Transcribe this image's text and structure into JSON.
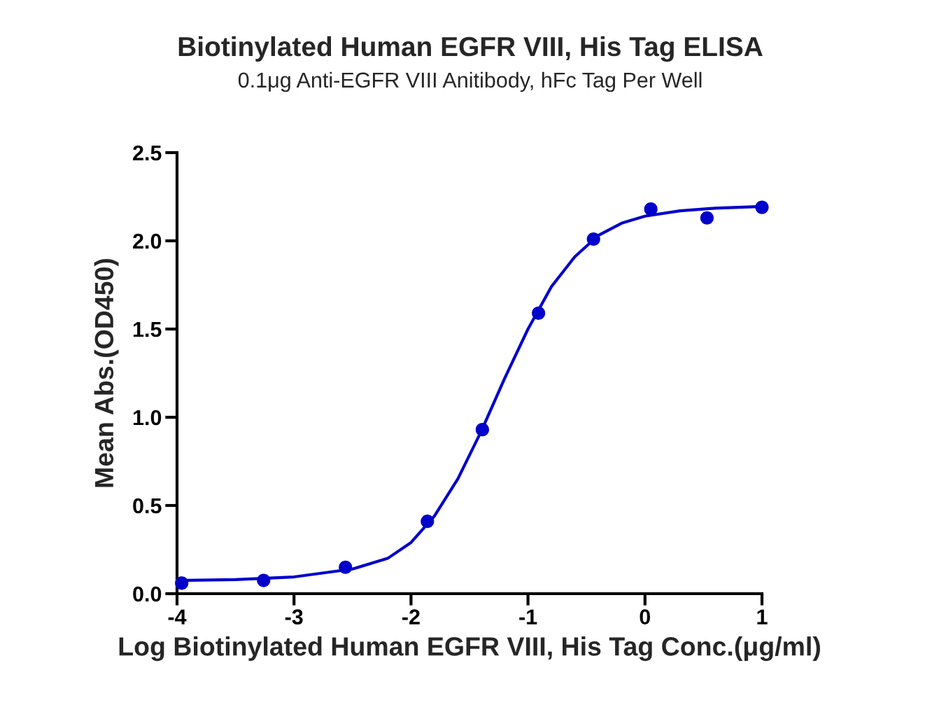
{
  "chart_data": {
    "type": "scatter",
    "title": "Biotinylated Human EGFR VIII, His Tag ELISA",
    "subtitle": "0.1μg Anti-EGFR VIII Anitibody, hFc Tag Per Well",
    "xlabel": "Log Biotinylated Human EGFR VIII, His Tag Conc.(μg/ml)",
    "ylabel": "Mean Abs.(OD450)",
    "series": [
      {
        "color": "#0000cc",
        "marker": "circle",
        "x": [
          -3.96,
          -3.26,
          -2.56,
          -1.86,
          -1.39,
          -0.91,
          -0.44,
          0.05,
          0.53,
          1.0
        ],
        "values": [
          0.06,
          0.075,
          0.15,
          0.41,
          0.93,
          1.59,
          2.01,
          2.18,
          2.13,
          2.19
        ]
      },
      {
        "type": "line",
        "color": "#0000cc",
        "marker": "none",
        "line_style": "solid",
        "x": [
          -4,
          -3.5,
          -3,
          -2.5,
          -2.2,
          -2,
          -1.8,
          -1.6,
          -1.4,
          -1.2,
          -1.0,
          -0.8,
          -0.6,
          -0.4,
          -0.2,
          0,
          0.3,
          0.6,
          1
        ],
        "values": [
          0.075,
          0.08,
          0.095,
          0.14,
          0.2,
          0.29,
          0.44,
          0.65,
          0.92,
          1.22,
          1.5,
          1.74,
          1.91,
          2.03,
          2.1,
          2.14,
          2.17,
          2.185,
          2.195
        ]
      }
    ],
    "xlim": [
      -4,
      1
    ],
    "xticks": [
      -4,
      -3,
      -2,
      -1,
      0,
      1
    ],
    "ylim": [
      0,
      2.5
    ],
    "yticks": [
      {
        "value": 0,
        "label": "0.0"
      },
      0.5,
      {
        "value": 1,
        "label": "1.0"
      },
      1.5,
      {
        "value": 2,
        "label": "2.0"
      },
      2.5
    ],
    "grid": false,
    "legend": false
  }
}
